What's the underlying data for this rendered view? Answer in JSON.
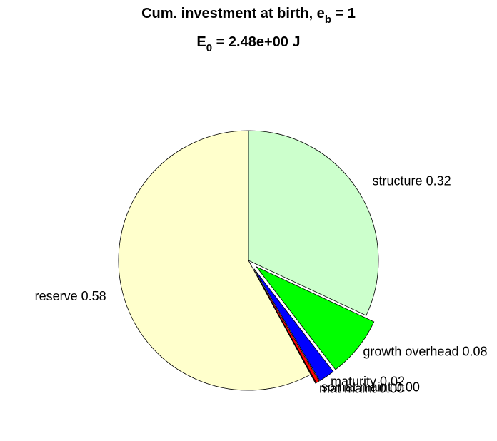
{
  "chart_data": {
    "type": "pie",
    "title": {
      "text": "Cum. investment at birth, e",
      "sub": "b",
      "tail": " = 1"
    },
    "subtitle": {
      "text": "E",
      "sub": "0",
      "tail": " = 2.48e+00 J"
    },
    "categories": [
      "structure",
      "growth overhead",
      "maturity",
      "somat maint",
      "mat maint",
      "reserve"
    ],
    "values": [
      0.32,
      0.076,
      0.02,
      0.004,
      0.001,
      0.58
    ],
    "value_labels": [
      "0.32",
      "0.08",
      "0.02",
      "0.00",
      "0.00",
      "0.58"
    ],
    "colors": [
      "#ccffcc",
      "#00ff00",
      "#0000ff",
      "#ff0000",
      "#800000",
      "#ffffcc"
    ],
    "explode": [
      false,
      true,
      true,
      true,
      true,
      false
    ]
  }
}
